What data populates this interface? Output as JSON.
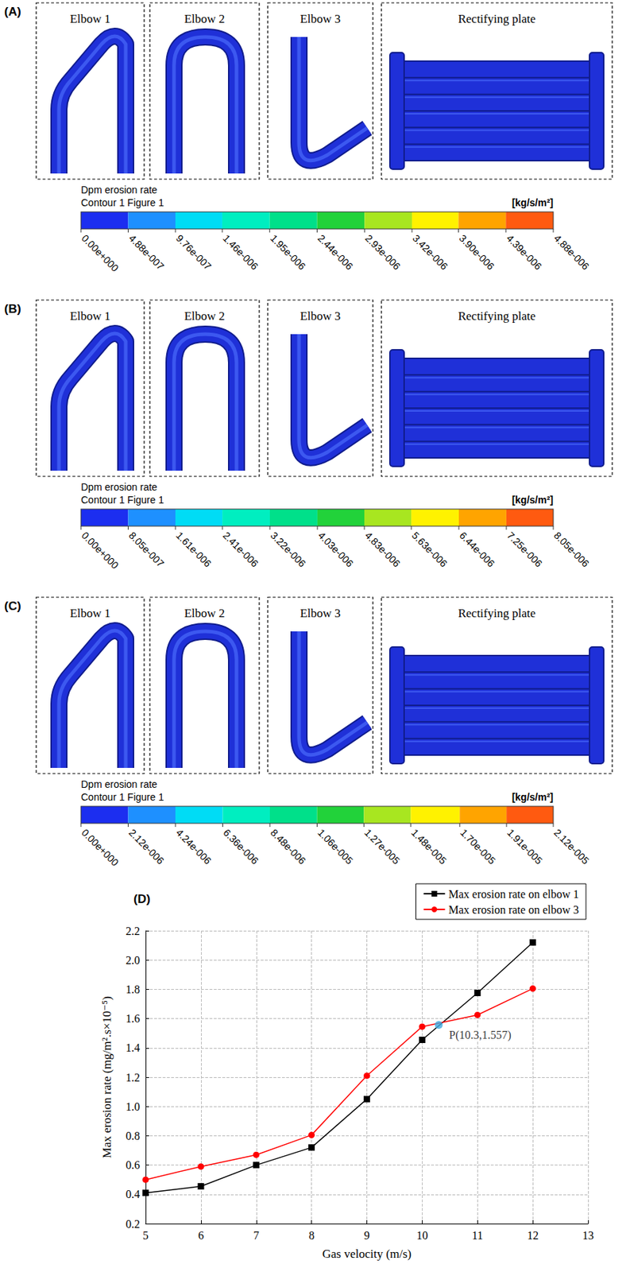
{
  "panels": [
    {
      "letter": "(A)",
      "titles": [
        "Elbow 1",
        "Elbow 2",
        "Elbow 3",
        "Rectifying plate"
      ],
      "colorbar": {
        "title": [
          "Dpm erosion rate",
          "Contour 1 Figure 1"
        ],
        "unit": "[kg/s/m²]",
        "range": [
          0,
          4.88e-06
        ],
        "ticks": [
          {
            "value": 0,
            "label": "0.00e+000"
          },
          {
            "value": 4.88e-07,
            "label": "4.88e-007"
          },
          {
            "value": 9.76e-07,
            "label": "9.76e-007"
          },
          {
            "value": 1.46e-06,
            "label": "1.46e-006"
          },
          {
            "value": 1.95e-06,
            "label": "1.95e-006"
          },
          {
            "value": 2.44e-06,
            "label": "2.44e-006"
          },
          {
            "value": 2.93e-06,
            "label": "2.93e-006"
          },
          {
            "value": 3.42e-06,
            "label": "3.42e-006"
          },
          {
            "value": 3.9e-06,
            "label": "3.90e-006"
          },
          {
            "value": 4.39e-06,
            "label": "4.39e-006"
          },
          {
            "value": 4.88e-06,
            "label": "4.88e-006"
          }
        ]
      }
    },
    {
      "letter": "(B)",
      "titles": [
        "Elbow 1",
        "Elbow 2",
        "Elbow 3",
        "Rectifying plate"
      ],
      "colorbar": {
        "title": [
          "Dpm erosion rate",
          "Contour 1 Figure 1"
        ],
        "unit": "[kg/s/m²]",
        "range": [
          0,
          8.05e-06
        ],
        "ticks": [
          {
            "value": 0,
            "label": "0.00e+000"
          },
          {
            "value": 8.05e-07,
            "label": "8.05e-007"
          },
          {
            "value": 1.61e-06,
            "label": "1.61e-006"
          },
          {
            "value": 2.41e-06,
            "label": "2.41e-006"
          },
          {
            "value": 3.22e-06,
            "label": "3.22e-006"
          },
          {
            "value": 4.03e-06,
            "label": "4.03e-006"
          },
          {
            "value": 4.83e-06,
            "label": "4.83e-006"
          },
          {
            "value": 5.63e-06,
            "label": "5.63e-006"
          },
          {
            "value": 6.44e-06,
            "label": "6.44e-006"
          },
          {
            "value": 7.25e-06,
            "label": "7.25e-006"
          },
          {
            "value": 8.05e-06,
            "label": "8.05e-006"
          }
        ]
      }
    },
    {
      "letter": "(C)",
      "titles": [
        "Elbow 1",
        "Elbow 2",
        "Elbow 3",
        "Rectifying plate"
      ],
      "colorbar": {
        "title": [
          "Dpm erosion rate",
          "Contour 1 Figure 1"
        ],
        "unit": "[kg/s/m²]",
        "range": [
          0,
          2.12e-05
        ],
        "ticks": [
          {
            "value": 0,
            "label": "0.00e+000"
          },
          {
            "value": 2.12e-06,
            "label": "2.12e-006"
          },
          {
            "value": 4.24e-06,
            "label": "4.24e-006"
          },
          {
            "value": 6.36e-06,
            "label": "6.36e-006"
          },
          {
            "value": 8.48e-06,
            "label": "8.48e-006"
          },
          {
            "value": 1.06e-05,
            "label": "1.06e-005"
          },
          {
            "value": 1.27e-05,
            "label": "1.27e-005"
          },
          {
            "value": 1.48e-05,
            "label": "1.48e-005"
          },
          {
            "value": 1.7e-05,
            "label": "1.70e-005"
          },
          {
            "value": 1.91e-05,
            "label": "1.91e-005"
          },
          {
            "value": 2.12e-05,
            "label": "2.12e-005"
          }
        ]
      }
    }
  ],
  "chart_data": {
    "type": "line",
    "title": "(D)",
    "xlabel": "Gas velocity (m/s)",
    "ylabel": "Max erosion rate (mg/m².s×10⁻⁵)",
    "x": [
      5,
      6,
      7,
      8,
      9,
      10,
      11,
      12
    ],
    "series": [
      {
        "name": "Max erosion rate on elbow 1",
        "color": "#000000",
        "marker": "square",
        "line_style": "solid",
        "values": [
          0.41,
          0.455,
          0.6,
          0.72,
          1.05,
          1.455,
          1.775,
          2.12
        ]
      },
      {
        "name": "Max erosion rate on elbow 3",
        "color": "#ff0000",
        "marker": "circle",
        "line_style": "solid",
        "values": [
          0.5,
          0.59,
          0.67,
          0.805,
          1.21,
          1.545,
          1.625,
          1.805
        ]
      }
    ],
    "annotations": [
      {
        "x": 10.3,
        "y": 1.557,
        "text": "P(10.3,1.557)",
        "color": "#3fa9e0"
      }
    ],
    "xlim": [
      5,
      13
    ],
    "xticks": [
      5,
      6,
      7,
      8,
      9,
      10,
      11,
      12,
      13
    ],
    "ylim": [
      0.2,
      2.2
    ],
    "yticks": [
      0.2,
      0.4,
      0.6,
      0.8,
      {
        "value": 1,
        "label": "1.0"
      },
      1.2,
      1.4,
      1.6,
      1.8,
      {
        "value": 2,
        "label": "2.0"
      },
      2.2
    ],
    "grid": true,
    "legend": "top-right"
  }
}
